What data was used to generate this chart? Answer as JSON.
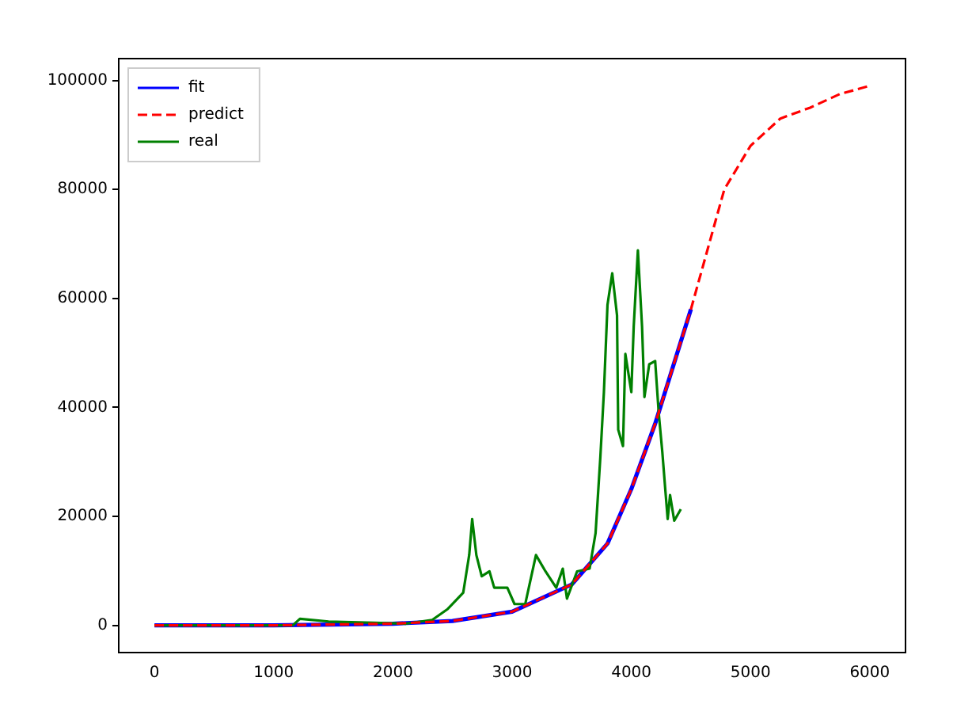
{
  "chart_data": {
    "type": "line",
    "xlim": [
      -300,
      6300
    ],
    "ylim": [
      -5000,
      104000
    ],
    "xticks": [
      0,
      1000,
      2000,
      3000,
      4000,
      5000,
      6000
    ],
    "yticks": [
      0,
      20000,
      40000,
      60000,
      80000,
      100000
    ],
    "grid": false,
    "legend": "top left",
    "marker": "none",
    "series": [
      {
        "name": "fit",
        "color": "#0000ff",
        "line_style": "solid",
        "x": [
          0,
          1000,
          2000,
          2500,
          3000,
          3500,
          3800,
          3900,
          4000,
          4200,
          4500
        ],
        "values": [
          0,
          0,
          300,
          800,
          2500,
          7500,
          15000,
          20000,
          25000,
          37000,
          58000
        ]
      },
      {
        "name": "predict",
        "color": "#ff0000",
        "line_style": "dashed",
        "x": [
          0,
          1000,
          2000,
          2500,
          3000,
          3500,
          3800,
          3900,
          4000,
          4200,
          4500,
          4780,
          5000,
          5250,
          5500,
          5750,
          6000
        ],
        "values": [
          0,
          0,
          300,
          800,
          2500,
          7500,
          15000,
          20000,
          25000,
          37000,
          58000,
          80000,
          88000,
          93000,
          95000,
          97500,
          99000
        ]
      },
      {
        "name": "real",
        "color": "#008000",
        "line_style": "solid",
        "x": [
          0,
          1160,
          1220,
          1460,
          2110,
          2330,
          2460,
          2590,
          2640,
          2665,
          2700,
          2745,
          2810,
          2850,
          2960,
          3020,
          3110,
          3200,
          3280,
          3370,
          3425,
          3460,
          3545,
          3650,
          3700,
          3740,
          3770,
          3800,
          3840,
          3880,
          3890,
          3930,
          3950,
          4000,
          4020,
          4055,
          4090,
          4110,
          4150,
          4200,
          4230,
          4260,
          4285,
          4305,
          4325,
          4360,
          4415
        ],
        "values": [
          0,
          0,
          1200,
          700,
          300,
          1000,
          3000,
          6000,
          12900,
          19500,
          12900,
          9000,
          9900,
          6900,
          6900,
          3900,
          3900,
          12900,
          9900,
          6900,
          10400,
          4900,
          9900,
          10400,
          16900,
          30800,
          42800,
          58800,
          64600,
          56900,
          35900,
          32900,
          49800,
          42800,
          54800,
          68800,
          54800,
          41900,
          47900,
          48500,
          38900,
          31800,
          24900,
          19500,
          23900,
          19200,
          21300
        ]
      }
    ]
  }
}
